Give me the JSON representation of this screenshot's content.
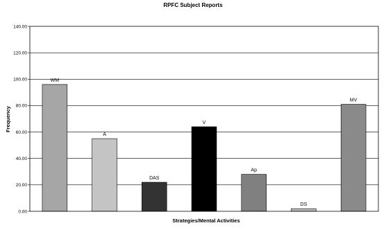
{
  "chart_data": {
    "type": "bar",
    "title": "RPFC Subject Reports",
    "xlabel": "Strategies/Mental Activities",
    "ylabel": "Frequency",
    "ylim": [
      0,
      140
    ],
    "yticks": [
      "0.00",
      "20.00",
      "40.00",
      "60.00",
      "80.00",
      "100.00",
      "120.00",
      "140.00"
    ],
    "grid": true,
    "legend": "none",
    "categories": [
      "WM",
      "A",
      "DAS",
      "V",
      "Ap",
      "DS",
      "MV"
    ],
    "values": [
      96,
      55,
      22,
      64,
      28,
      2,
      81
    ],
    "data_labels": [
      "WM",
      "A",
      "DAS",
      "V",
      "Ap",
      "DS",
      "MV"
    ],
    "colors": [
      "#a6a6a6",
      "#c4c4c4",
      "#333333",
      "#000000",
      "#808080",
      "#bdbdbd",
      "#8a8a8a"
    ]
  }
}
